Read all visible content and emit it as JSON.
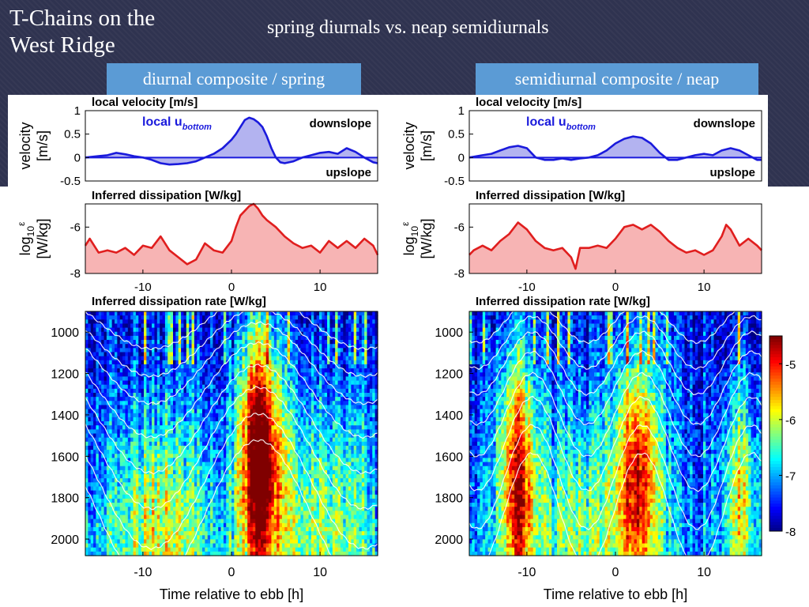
{
  "slide": {
    "title_line1": "T-Chains on the",
    "title_line2": "West Ridge",
    "subtitle": "spring diurnals vs. neap semidiurnals"
  },
  "colors": {
    "velocity_line": "#1a1adc",
    "velocity_fill": "#b3b3f0",
    "dissipation_line": "#e01e1e",
    "dissipation_fill": "#f7b4b4",
    "tag_background": "#5b9bd5",
    "background": "#2f3350"
  },
  "colorbar": {
    "range": [
      -8,
      -4.5
    ],
    "ticks": [
      -5,
      -6,
      -7,
      -8
    ],
    "tick_labels": [
      "-5",
      "-6",
      "-7",
      "-8"
    ],
    "colormap": "jet"
  },
  "chart_data": [
    {
      "type": "area",
      "panel": "left",
      "tag": "diurnal composite / spring",
      "title": "local velocity [m/s]",
      "ylabel_line1": "velocity",
      "ylabel_line2": "[m/s]",
      "legend": "local u",
      "legend_sub": "bottom",
      "label_top": "downslope",
      "label_bottom": "upslope",
      "xlim": [
        -16.5,
        16.5
      ],
      "ylim": [
        -0.5,
        1
      ],
      "yticks": [
        1,
        0.5,
        0,
        -0.5
      ],
      "ytick_labels": [
        "1",
        "0.5",
        "0",
        "-0.5"
      ],
      "x": [
        -16.5,
        -14,
        -13,
        -12,
        -11,
        -10,
        -9,
        -8,
        -7,
        -6,
        -5,
        -4,
        -3,
        -2,
        -1,
        0,
        0.5,
        1,
        1.5,
        2,
        2.5,
        3,
        3.5,
        4,
        4.5,
        5,
        5.5,
        6,
        7,
        8,
        9,
        10,
        11,
        12,
        13,
        14,
        15,
        16,
        16.5
      ],
      "y": [
        0,
        0.05,
        0.1,
        0.07,
        0.03,
        0,
        -0.05,
        -0.12,
        -0.15,
        -0.14,
        -0.12,
        -0.08,
        0,
        0.08,
        0.2,
        0.38,
        0.5,
        0.65,
        0.8,
        0.85,
        0.82,
        0.75,
        0.65,
        0.45,
        0.2,
        0,
        -0.1,
        -0.12,
        -0.08,
        0,
        0.05,
        0.1,
        0.12,
        0.08,
        0.2,
        0.12,
        0,
        -0.1,
        -0.12
      ]
    },
    {
      "type": "area",
      "panel": "left",
      "title": "Inferred dissipation [W/kg]",
      "ylabel_line1": "log",
      "ylabel_sub": "10",
      "ylabel_sup": "ε",
      "ylabel_line2": "[W/kg]",
      "xlim": [
        -16.5,
        16.5
      ],
      "ylim": [
        -8,
        -5
      ],
      "yticks": [
        -6,
        -8
      ],
      "ytick_labels": [
        "-6",
        "-8"
      ],
      "xticks": [
        -10,
        0,
        10
      ],
      "xtick_labels": [
        "-10",
        "0",
        "10"
      ],
      "x": [
        -16.5,
        -16,
        -15,
        -14,
        -13,
        -12,
        -11,
        -10,
        -9,
        -8,
        -7,
        -6,
        -5,
        -4,
        -3,
        -2,
        -1,
        0,
        0.5,
        1,
        1.5,
        2,
        2.5,
        3,
        3.5,
        4,
        5,
        6,
        7,
        8,
        9,
        10,
        11,
        12,
        13,
        14,
        15,
        16,
        16.5
      ],
      "y": [
        -6.8,
        -6.5,
        -7.1,
        -7.0,
        -7.1,
        -6.9,
        -7.2,
        -6.8,
        -6.9,
        -6.4,
        -7.0,
        -7.3,
        -7.6,
        -7.4,
        -6.7,
        -7.0,
        -7.1,
        -6.6,
        -6.0,
        -5.5,
        -5.3,
        -5.1,
        -5.0,
        -5.2,
        -5.5,
        -5.7,
        -6.0,
        -6.4,
        -6.7,
        -6.9,
        -6.8,
        -7.1,
        -6.6,
        -6.9,
        -6.6,
        -6.9,
        -6.5,
        -6.8,
        -7.2
      ]
    },
    {
      "type": "heatmap",
      "panel": "left",
      "title": "Inferred dissipation rate [W/kg]",
      "xlabel": "Time relative to ebb [h]",
      "xlim": [
        -16.5,
        16.5
      ],
      "ylim": [
        900,
        2080
      ],
      "yticks": [
        1000,
        1200,
        1400,
        1600,
        1800,
        2000
      ],
      "ytick_labels": [
        "1000",
        "1200",
        "1400",
        "1600",
        "1800",
        "2000"
      ],
      "xticks": [
        -10,
        0,
        10
      ],
      "xtick_labels": [
        "-10",
        "0",
        "10"
      ],
      "hotspots": [
        {
          "t": 3.2,
          "z": 1600,
          "width_h": 2.2,
          "amplitude": 3.3
        },
        {
          "t": -8,
          "z": 1950,
          "width_h": 6,
          "amplitude": 1.2
        },
        {
          "t": 10,
          "z": 1900,
          "width_h": 6,
          "amplitude": 1.0
        }
      ],
      "isotherm_base_depths": [
        950,
        1050,
        1150,
        1280,
        1420,
        1560,
        1720,
        1880
      ],
      "isotherm_amplitude": 130
    },
    {
      "type": "area",
      "panel": "right",
      "tag": "semidiurnal composite / neap",
      "title": "local velocity [m/s]",
      "ylabel_line1": "velocity",
      "ylabel_line2": "[m/s]",
      "legend": "local u",
      "legend_sub": "bottom",
      "label_top": "downslope",
      "label_bottom": "upslope",
      "xlim": [
        -16.5,
        16.5
      ],
      "ylim": [
        -0.5,
        1
      ],
      "yticks": [
        1,
        0.5,
        0,
        -0.5
      ],
      "ytick_labels": [
        "1",
        "0.5",
        "0",
        "-0.5"
      ],
      "x": [
        -16.5,
        -15,
        -14,
        -13,
        -12,
        -11,
        -10,
        -9,
        -8,
        -7,
        -6,
        -5,
        -4,
        -3,
        -2,
        -1,
        0,
        1,
        2,
        3,
        4,
        5,
        6,
        7,
        8,
        9,
        10,
        11,
        12,
        13,
        14,
        15,
        16,
        16.5
      ],
      "y": [
        0,
        0.05,
        0.08,
        0.15,
        0.22,
        0.25,
        0.2,
        0,
        -0.05,
        -0.05,
        -0.02,
        -0.05,
        -0.02,
        0,
        0.05,
        0.15,
        0.3,
        0.4,
        0.45,
        0.42,
        0.3,
        0.1,
        -0.05,
        -0.05,
        0,
        0.05,
        0.08,
        0.05,
        0.15,
        0.2,
        0.15,
        0.05,
        -0.05,
        -0.05
      ]
    },
    {
      "type": "area",
      "panel": "right",
      "title": "Inferred dissipation [W/kg]",
      "ylabel_line1": "log",
      "ylabel_sub": "10",
      "ylabel_sup": "ε",
      "ylabel_line2": "[W/kg]",
      "xlim": [
        -16.5,
        16.5
      ],
      "ylim": [
        -8,
        -5
      ],
      "yticks": [
        -6,
        -8
      ],
      "ytick_labels": [
        "-6",
        "-8"
      ],
      "xticks": [
        -10,
        0,
        10
      ],
      "xtick_labels": [
        "-10",
        "0",
        "10"
      ],
      "x": [
        -16.5,
        -16,
        -15,
        -14,
        -13,
        -12,
        -11,
        -10,
        -9,
        -8,
        -7,
        -6,
        -5,
        -4.5,
        -4,
        -3,
        -2,
        -1,
        0,
        1,
        2,
        3,
        4,
        5,
        6,
        7,
        8,
        9,
        10,
        11,
        12,
        12.5,
        13,
        14,
        15,
        16,
        16.5
      ],
      "y": [
        -7.2,
        -7.0,
        -6.8,
        -7.0,
        -6.6,
        -6.3,
        -5.8,
        -6.1,
        -6.6,
        -6.9,
        -7.0,
        -6.9,
        -7.3,
        -7.8,
        -6.9,
        -6.9,
        -6.8,
        -6.9,
        -6.5,
        -6.0,
        -5.9,
        -6.1,
        -5.9,
        -6.2,
        -6.6,
        -6.9,
        -7.1,
        -7.0,
        -7.2,
        -7.0,
        -6.4,
        -5.9,
        -6.1,
        -6.8,
        -6.5,
        -6.8,
        -7.0
      ]
    },
    {
      "type": "heatmap",
      "panel": "right",
      "title": "Inferred dissipation rate [W/kg]",
      "xlabel": "Time relative to ebb [h]",
      "xlim": [
        -16.5,
        16.5
      ],
      "ylim": [
        900,
        2080
      ],
      "yticks": [
        1000,
        1200,
        1400,
        1600,
        1800,
        2000
      ],
      "ytick_labels": [
        "1000",
        "1200",
        "1400",
        "1600",
        "1800",
        "2000"
      ],
      "xticks": [
        -10,
        0,
        10
      ],
      "xtick_labels": [
        "-10",
        "0",
        "10"
      ],
      "hotspots": [
        {
          "t": -11,
          "z": 1700,
          "width_h": 2.2,
          "amplitude": 2.3
        },
        {
          "t": 2.5,
          "z": 1700,
          "width_h": 2.5,
          "amplitude": 2.3
        },
        {
          "t": 14,
          "z": 1800,
          "width_h": 2,
          "amplitude": 1.4
        },
        {
          "t": -4,
          "z": 1950,
          "width_h": 5,
          "amplitude": 0.8
        }
      ],
      "isotherm_base_depths": [
        950,
        1050,
        1150,
        1270,
        1400,
        1540,
        1700,
        1860
      ],
      "isotherm_amplitude": 100
    }
  ]
}
